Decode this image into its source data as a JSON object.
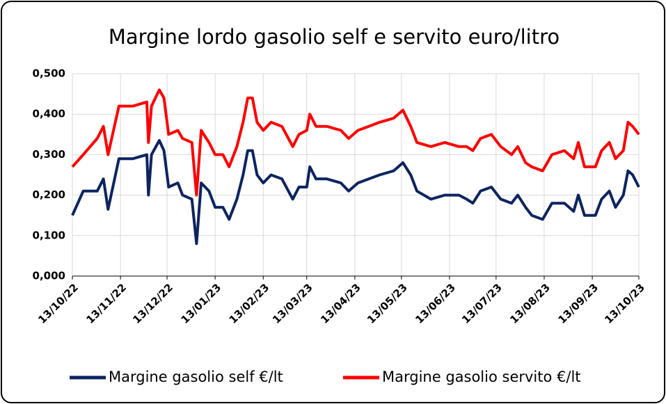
{
  "chart_data": {
    "type": "line",
    "title": "Margine lordo gasolio self e servito euro/litro",
    "x": [
      "13/10/22",
      "20/10/22",
      "29/10/22",
      "02/11/22",
      "05/11/22",
      "12/11/22",
      "21/11/22",
      "30/11/22",
      "01/12/22",
      "03/12/22",
      "08/12/22",
      "11/12/22",
      "14/12/22",
      "20/12/22",
      "23/12/22",
      "29/12/22",
      "01/01/23",
      "04/01/23",
      "09/01/23",
      "13/01/23",
      "18/01/23",
      "22/01/23",
      "27/01/23",
      "31/01/23",
      "03/02/23",
      "06/02/23",
      "09/02/23",
      "13/02/23",
      "18/02/23",
      "25/02/23",
      "04/03/23",
      "08/03/23",
      "13/03/23",
      "15/03/23",
      "19/03/23",
      "26/03/23",
      "04/04/23",
      "09/04/23",
      "15/04/23",
      "22/04/23",
      "29/04/23",
      "08/05/23",
      "14/05/23",
      "19/05/23",
      "23/05/23",
      "01/06/23",
      "10/06/23",
      "19/06/23",
      "24/06/23",
      "28/06/23",
      "03/07/23",
      "10/07/23",
      "16/07/23",
      "23/07/23",
      "27/07/23",
      "01/08/23",
      "05/08/23",
      "12/08/23",
      "18/08/23",
      "26/08/23",
      "01/09/23",
      "04/09/23",
      "08/09/23",
      "15/09/23",
      "19/09/23",
      "24/09/23",
      "28/09/23",
      "03/10/23",
      "06/10/23",
      "09/10/23",
      "13/10/23"
    ],
    "series": [
      {
        "name": "Margine gasolio self €/lt",
        "color": "#0d2461",
        "values": [
          0.15,
          0.21,
          0.21,
          0.24,
          0.165,
          0.29,
          0.29,
          0.3,
          0.2,
          0.3,
          0.335,
          0.31,
          0.22,
          0.23,
          0.2,
          0.19,
          0.08,
          0.23,
          0.21,
          0.17,
          0.17,
          0.14,
          0.19,
          0.25,
          0.31,
          0.31,
          0.25,
          0.23,
          0.25,
          0.24,
          0.19,
          0.22,
          0.22,
          0.27,
          0.24,
          0.24,
          0.23,
          0.21,
          0.23,
          0.24,
          0.25,
          0.26,
          0.28,
          0.25,
          0.21,
          0.19,
          0.2,
          0.2,
          0.19,
          0.18,
          0.21,
          0.22,
          0.19,
          0.18,
          0.2,
          0.17,
          0.15,
          0.14,
          0.18,
          0.18,
          0.16,
          0.2,
          0.15,
          0.15,
          0.19,
          0.21,
          0.17,
          0.2,
          0.26,
          0.25,
          0.22
        ]
      },
      {
        "name": "Margine gasolio servito €/lt",
        "color": "#ff0000",
        "values": [
          0.27,
          0.3,
          0.34,
          0.37,
          0.3,
          0.42,
          0.42,
          0.43,
          0.33,
          0.42,
          0.46,
          0.44,
          0.35,
          0.36,
          0.34,
          0.33,
          0.2,
          0.36,
          0.33,
          0.3,
          0.3,
          0.27,
          0.32,
          0.38,
          0.44,
          0.44,
          0.38,
          0.36,
          0.38,
          0.37,
          0.32,
          0.35,
          0.36,
          0.4,
          0.37,
          0.37,
          0.36,
          0.34,
          0.36,
          0.37,
          0.38,
          0.39,
          0.41,
          0.37,
          0.33,
          0.32,
          0.33,
          0.32,
          0.32,
          0.31,
          0.34,
          0.35,
          0.32,
          0.3,
          0.32,
          0.28,
          0.27,
          0.26,
          0.3,
          0.31,
          0.29,
          0.33,
          0.27,
          0.27,
          0.31,
          0.33,
          0.29,
          0.31,
          0.38,
          0.37,
          0.35
        ]
      }
    ],
    "xlim": [
      "13/10/22",
      "13/10/23"
    ],
    "xticks": [
      "13/10/22",
      "13/11/22",
      "13/12/22",
      "13/01/23",
      "13/02/23",
      "13/03/23",
      "13/04/23",
      "13/05/23",
      "13/06/23",
      "13/07/23",
      "13/08/23",
      "13/09/23",
      "13/10/23"
    ],
    "ylim": [
      0,
      0.5
    ],
    "yticks": [
      {
        "value": 0,
        "label": "0,000"
      },
      {
        "value": 0.1,
        "label": "0,100"
      },
      {
        "value": 0.2,
        "label": "0,200"
      },
      {
        "value": 0.3,
        "label": "0,300"
      },
      {
        "value": 0.4,
        "label": "0,400"
      },
      {
        "value": 0.5,
        "label": "0,500"
      }
    ],
    "grid": true,
    "legend": "bottom"
  }
}
